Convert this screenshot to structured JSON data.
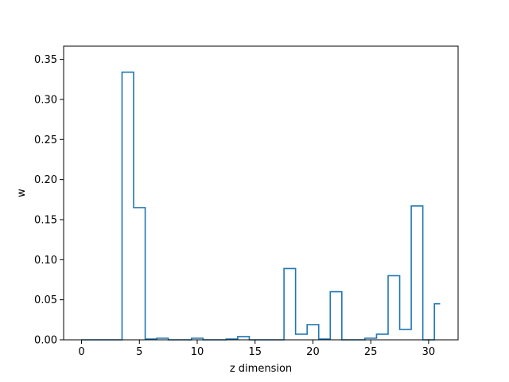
{
  "chart_data": {
    "type": "step",
    "title": "",
    "xlabel": "z dimension",
    "ylabel": "w",
    "xlim": [
      -1.55,
      32.55
    ],
    "ylim": [
      0,
      0.3665
    ],
    "xticks": [
      0,
      5,
      10,
      15,
      20,
      25,
      30
    ],
    "yticks": [
      0.0,
      0.05,
      0.1,
      0.15,
      0.2,
      0.25,
      0.3,
      0.35
    ],
    "xtick_labels": [
      "0",
      "5",
      "10",
      "15",
      "20",
      "25",
      "30"
    ],
    "ytick_labels": [
      "0.00",
      "0.05",
      "0.10",
      "0.15",
      "0.20",
      "0.25",
      "0.30",
      "0.35"
    ],
    "grid": false,
    "color": "#1f77b4",
    "series": [
      {
        "x": [
          0,
          1,
          2,
          3,
          4,
          5,
          6,
          7,
          8,
          9,
          10,
          11,
          12,
          13,
          14,
          15,
          16,
          17,
          18,
          19,
          20,
          21,
          22,
          23,
          24,
          25,
          26,
          27,
          28,
          29,
          30,
          31
        ],
        "values": [
          0.0,
          0.0,
          0.0,
          0.0,
          0.334,
          0.165,
          0.001,
          0.002,
          0.0,
          0.0,
          0.002,
          0.0,
          0.0,
          0.001,
          0.004,
          0.0,
          0.0,
          0.0,
          0.089,
          0.007,
          0.019,
          0.001,
          0.06,
          0.0,
          0.0,
          0.002,
          0.007,
          0.08,
          0.013,
          0.167,
          0.0,
          0.045
        ]
      }
    ]
  }
}
